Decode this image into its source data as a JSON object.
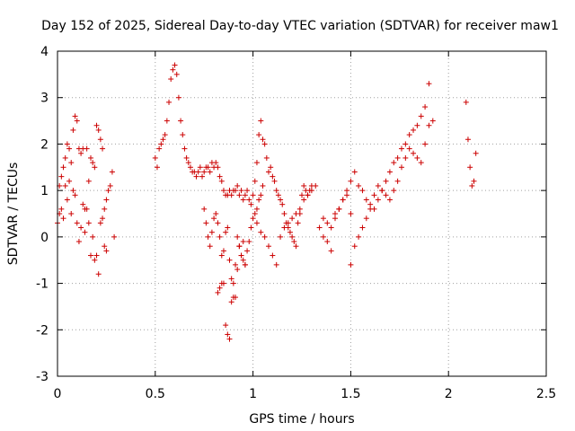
{
  "chart_data": {
    "type": "scatter",
    "title": "Day 152 of 2025, Sidereal Day-to-day VTEC variation (SDTVAR) for receiver maw1",
    "xlabel": "GPS time / hours",
    "ylabel": "SDTVAR / TECUs",
    "xlim": [
      0,
      2.5
    ],
    "ylim": [
      -3,
      4
    ],
    "xticks": [
      "0",
      "0.5",
      "1",
      "1.5",
      "2",
      "2.5"
    ],
    "xtick_values": [
      0,
      0.5,
      1,
      1.5,
      2,
      2.5
    ],
    "yticks": [
      "-3",
      "-2",
      "-1",
      "0",
      "1",
      "2",
      "3",
      "4"
    ],
    "ytick_values": [
      -3,
      -2,
      -1,
      0,
      1,
      2,
      3,
      4
    ],
    "grid": true,
    "marker": "+",
    "marker_color": "#cc0000",
    "series": [
      {
        "name": "SDTVAR",
        "x": [
          0.0,
          0.01,
          0.01,
          0.02,
          0.02,
          0.03,
          0.03,
          0.04,
          0.04,
          0.05,
          0.05,
          0.06,
          0.06,
          0.07,
          0.07,
          0.08,
          0.08,
          0.09,
          0.09,
          0.1,
          0.1,
          0.11,
          0.11,
          0.12,
          0.12,
          0.13,
          0.13,
          0.14,
          0.14,
          0.15,
          0.15,
          0.16,
          0.16,
          0.17,
          0.17,
          0.18,
          0.18,
          0.19,
          0.19,
          0.2,
          0.2,
          0.21,
          0.21,
          0.22,
          0.22,
          0.23,
          0.23,
          0.24,
          0.24,
          0.25,
          0.25,
          0.26,
          0.27,
          0.28,
          0.29,
          0.5,
          0.51,
          0.52,
          0.53,
          0.54,
          0.55,
          0.56,
          0.57,
          0.58,
          0.59,
          0.6,
          0.61,
          0.62,
          0.63,
          0.64,
          0.65,
          0.66,
          0.67,
          0.68,
          0.69,
          0.7,
          0.71,
          0.72,
          0.73,
          0.74,
          0.75,
          0.76,
          0.77,
          0.78,
          0.79,
          0.8,
          0.81,
          0.82,
          0.83,
          0.84,
          0.85,
          0.86,
          0.87,
          0.88,
          0.89,
          0.9,
          0.91,
          0.92,
          0.93,
          0.94,
          0.95,
          0.96,
          0.97,
          0.98,
          0.99,
          0.75,
          0.76,
          0.77,
          0.78,
          0.79,
          0.8,
          0.81,
          0.82,
          0.83,
          0.84,
          0.85,
          0.86,
          0.87,
          0.88,
          0.89,
          0.9,
          0.91,
          0.92,
          0.93,
          0.94,
          0.95,
          0.96,
          0.97,
          0.98,
          0.99,
          1.0,
          1.01,
          1.02,
          1.03,
          1.04,
          1.05,
          0.82,
          0.83,
          0.84,
          0.85,
          0.86,
          0.87,
          0.88,
          0.89,
          0.9,
          0.91,
          0.92,
          0.93,
          0.94,
          0.95,
          0.96,
          1.0,
          1.01,
          1.02,
          1.03,
          1.04,
          1.05,
          1.06,
          1.07,
          1.08,
          1.09,
          1.1,
          1.11,
          1.12,
          1.13,
          1.14,
          1.15,
          1.16,
          1.17,
          1.18,
          1.19,
          1.2,
          1.21,
          1.22,
          1.23,
          1.24,
          1.25,
          1.26,
          1.27,
          1.28,
          1.29,
          1.3,
          1.02,
          1.04,
          1.06,
          1.08,
          1.1,
          1.12,
          1.14,
          1.16,
          1.18,
          1.2,
          1.22,
          1.24,
          1.26,
          1.28,
          1.3,
          1.32,
          1.34,
          1.36,
          1.38,
          1.4,
          1.42,
          1.44,
          1.46,
          1.48,
          1.5,
          1.36,
          1.38,
          1.4,
          1.42,
          1.44,
          1.46,
          1.48,
          1.5,
          1.52,
          1.54,
          1.56,
          1.58,
          1.6,
          1.62,
          1.64,
          1.66,
          1.68,
          1.7,
          1.72,
          1.74,
          1.76,
          1.78,
          1.8,
          1.82,
          1.84,
          1.86,
          1.88,
          1.9,
          1.92,
          1.5,
          1.52,
          1.54,
          1.56,
          1.58,
          1.6,
          1.62,
          1.64,
          1.66,
          1.68,
          1.7,
          1.72,
          1.74,
          1.76,
          1.78,
          1.8,
          1.82,
          1.84,
          1.86,
          1.88,
          1.9,
          2.09,
          2.1,
          2.11,
          2.12,
          2.13,
          2.14
        ],
        "y": [
          0.3,
          1.1,
          0.5,
          1.3,
          0.6,
          1.5,
          0.4,
          1.7,
          1.1,
          2.0,
          0.8,
          1.9,
          1.2,
          1.6,
          0.5,
          2.3,
          1.0,
          2.6,
          0.9,
          2.5,
          0.3,
          1.9,
          -0.1,
          1.8,
          0.2,
          1.9,
          0.7,
          0.6,
          0.1,
          1.9,
          0.6,
          1.2,
          0.3,
          1.7,
          -0.4,
          1.6,
          0.0,
          1.5,
          -0.5,
          2.4,
          -0.4,
          2.3,
          -0.8,
          2.1,
          0.3,
          1.9,
          0.4,
          0.6,
          -0.2,
          0.8,
          -0.3,
          1.0,
          1.1,
          1.4,
          0.0,
          1.7,
          1.5,
          1.9,
          2.0,
          2.1,
          2.2,
          2.5,
          2.9,
          3.4,
          3.6,
          3.7,
          3.5,
          3.0,
          2.5,
          2.2,
          1.9,
          1.7,
          1.6,
          1.5,
          1.4,
          1.4,
          1.3,
          1.4,
          1.5,
          1.3,
          1.4,
          1.5,
          1.5,
          1.4,
          1.6,
          1.5,
          1.6,
          1.5,
          1.3,
          1.2,
          1.0,
          0.9,
          0.9,
          1.0,
          0.9,
          1.0,
          1.0,
          1.1,
          0.9,
          1.0,
          0.8,
          0.9,
          1.0,
          0.8,
          0.7,
          0.6,
          0.3,
          0.0,
          -0.2,
          0.1,
          0.4,
          0.5,
          0.3,
          0.0,
          -0.4,
          -0.3,
          0.1,
          0.2,
          -0.5,
          -0.9,
          -1.0,
          -1.3,
          -0.7,
          -0.2,
          -0.4,
          -0.5,
          -0.6,
          -0.3,
          -0.1,
          0.2,
          0.4,
          0.5,
          0.6,
          0.8,
          0.9,
          1.1,
          -1.2,
          -1.1,
          -1.0,
          -1.0,
          -1.9,
          -2.1,
          -2.2,
          -1.4,
          -1.3,
          -0.6,
          0.0,
          -0.2,
          -0.4,
          -0.1,
          -0.6,
          0.9,
          1.2,
          1.6,
          2.2,
          2.5,
          2.1,
          2.0,
          1.7,
          1.4,
          1.5,
          1.3,
          1.2,
          1.0,
          0.9,
          0.8,
          0.7,
          0.5,
          0.3,
          0.2,
          0.1,
          0.0,
          -0.1,
          -0.2,
          0.3,
          0.5,
          0.9,
          1.1,
          1.0,
          0.9,
          1.0,
          1.1,
          0.3,
          0.1,
          0.0,
          -0.2,
          -0.4,
          -0.6,
          0.0,
          0.2,
          0.3,
          0.4,
          0.5,
          0.6,
          0.8,
          0.9,
          1.0,
          1.1,
          0.2,
          0.0,
          -0.1,
          -0.3,
          0.4,
          0.6,
          0.8,
          1.0,
          0.5,
          0.4,
          0.3,
          0.2,
          0.5,
          0.6,
          0.8,
          0.9,
          1.2,
          1.4,
          1.1,
          1.0,
          0.8,
          0.7,
          0.6,
          0.8,
          1.0,
          1.2,
          1.4,
          1.6,
          1.7,
          1.9,
          2.0,
          2.2,
          2.3,
          2.4,
          2.6,
          2.8,
          3.3,
          2.5,
          -0.6,
          -0.2,
          0.0,
          0.2,
          0.4,
          0.6,
          0.9,
          1.1,
          1.0,
          0.9,
          0.8,
          1.0,
          1.2,
          1.5,
          1.7,
          1.9,
          1.8,
          1.7,
          1.6,
          2.0,
          2.4,
          2.9,
          2.1,
          1.5,
          1.1,
          1.2,
          1.8
        ]
      }
    ]
  }
}
